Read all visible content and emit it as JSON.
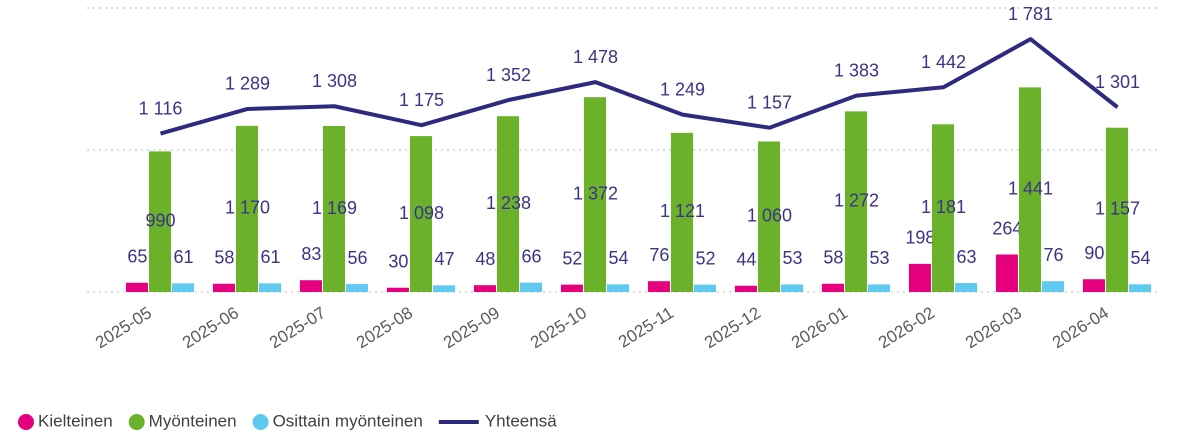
{
  "chart_data": {
    "type": "bar",
    "categories": [
      "2025-05",
      "2025-06",
      "2025-07",
      "2025-08",
      "2025-09",
      "2025-10",
      "2025-11",
      "2025-12",
      "2026-01",
      "2026-02",
      "2026-03",
      "2026-04"
    ],
    "series": [
      {
        "name": "Kielteinen",
        "type": "bar",
        "color": "#e5007d",
        "values": [
          65,
          58,
          83,
          30,
          48,
          52,
          76,
          44,
          58,
          198,
          264,
          90
        ],
        "value_labels": [
          "65",
          "58",
          "83",
          "30",
          "48",
          "52",
          "76",
          "44",
          "58",
          "198",
          "264",
          "90"
        ]
      },
      {
        "name": "Myönteinen",
        "type": "bar",
        "color": "#6cb12a",
        "values": [
          990,
          1170,
          1169,
          1098,
          1238,
          1372,
          1121,
          1060,
          1272,
          1181,
          1441,
          1157
        ],
        "value_labels": [
          "990",
          "1 170",
          "1 169",
          "1 098",
          "1 238",
          "1 372",
          "1 121",
          "1 060",
          "1 272",
          "1 181",
          "1 441",
          "1 157"
        ]
      },
      {
        "name": "Osittain myönteinen",
        "type": "bar",
        "color": "#5fc9f0",
        "values": [
          61,
          61,
          56,
          47,
          66,
          54,
          52,
          53,
          53,
          63,
          76,
          54
        ],
        "value_labels": [
          "61",
          "61",
          "56",
          "47",
          "66",
          "54",
          "52",
          "53",
          "53",
          "63",
          "76",
          "54"
        ]
      },
      {
        "name": "Yhteensä",
        "type": "line",
        "color": "#2e2a80",
        "values": [
          1116,
          1289,
          1308,
          1175,
          1352,
          1478,
          1249,
          1157,
          1383,
          1442,
          1781,
          1301
        ],
        "value_labels": [
          "1 116",
          "1 289",
          "1 308",
          "1 175",
          "1 352",
          "1 478",
          "1 249",
          "1 157",
          "1 383",
          "1 442",
          "1 781",
          "1 301"
        ]
      }
    ],
    "ylim": [
      0,
      2000
    ],
    "yticks": [
      0,
      1000,
      2000
    ],
    "show_ytick_labels": false,
    "grid": true,
    "legend": "bottom"
  }
}
